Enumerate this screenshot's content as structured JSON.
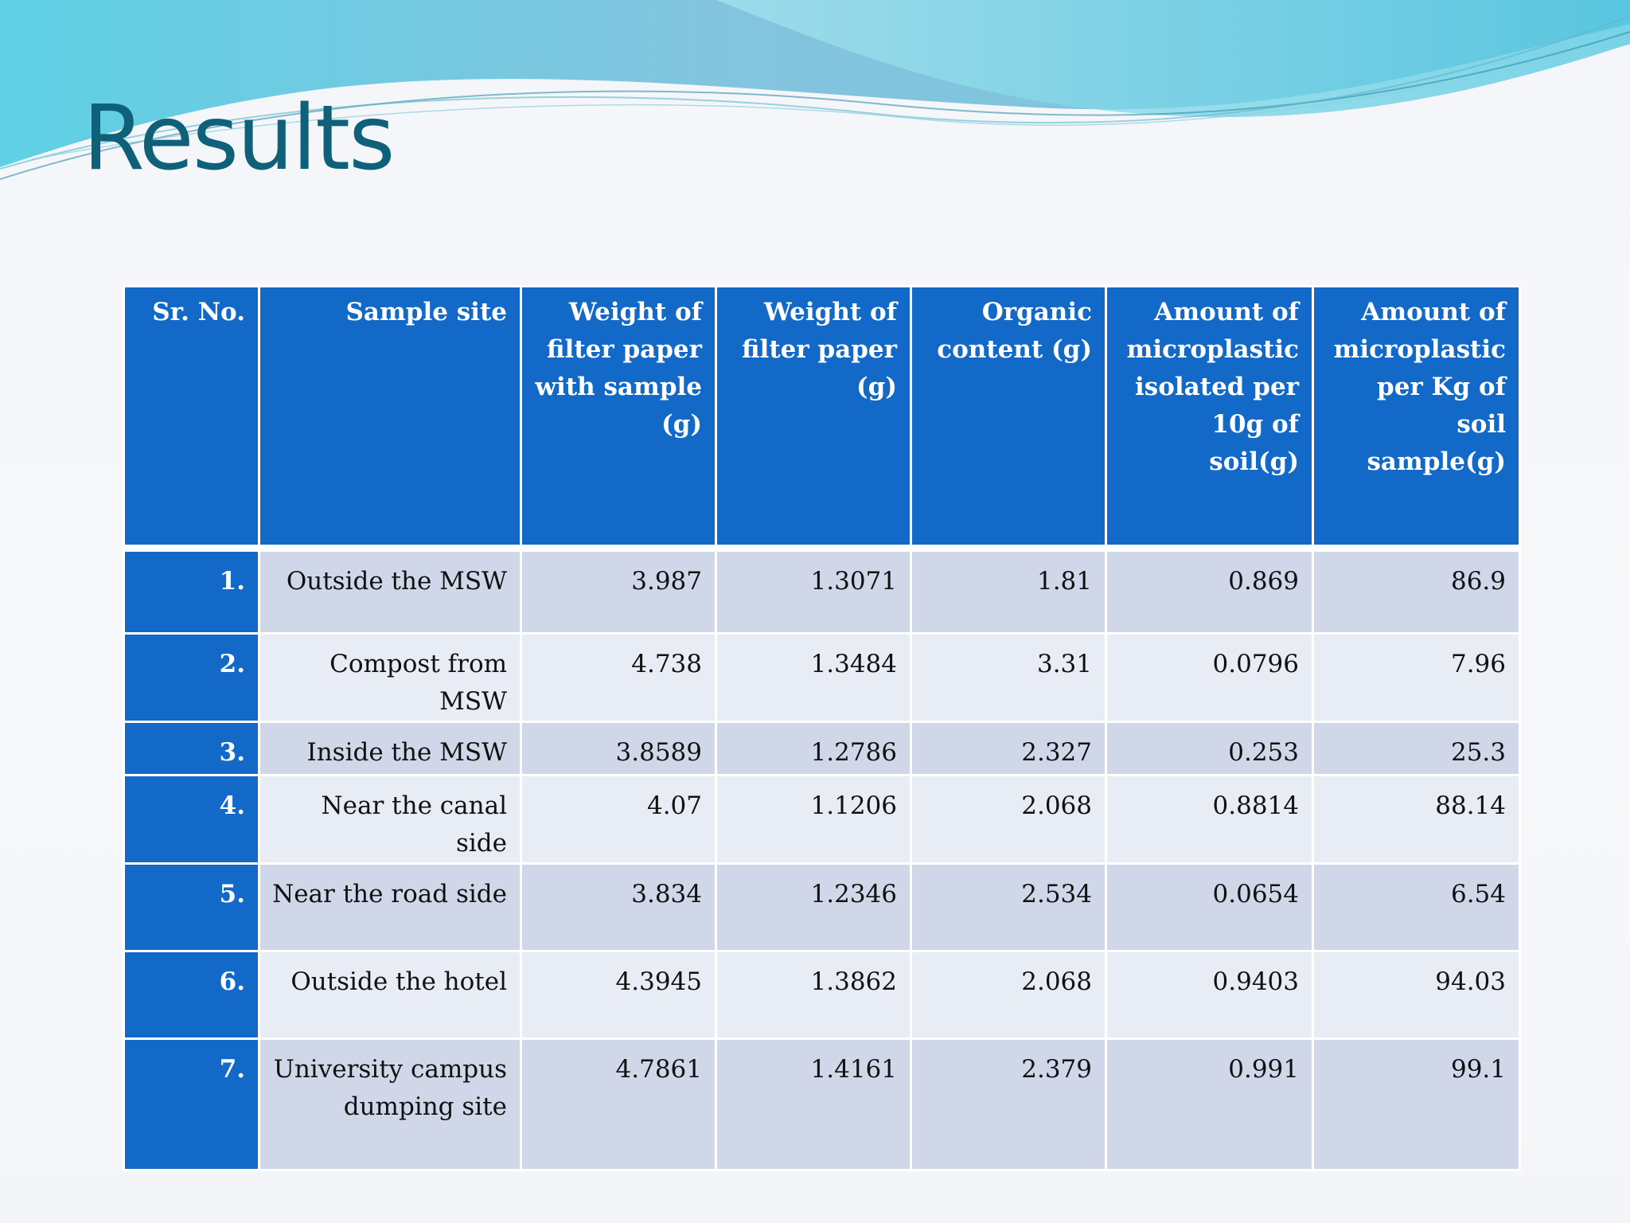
{
  "slide": {
    "title": "Results"
  },
  "colors": {
    "title": "#0f6079",
    "header_bg": "#1269c8",
    "row_odd": "#cfd7e9",
    "row_even": "#e8ecf5"
  },
  "table": {
    "headers": [
      "Sr. No.",
      "Sample site",
      "Weight of filter paper with sample (g)",
      "Weight of filter paper (g)",
      "Organic content (g)",
      "Amount of microplastic isolated per 10g of soil(g)",
      "Amount of microplastic per Kg of soil sample(g)"
    ],
    "rows": [
      [
        "1.",
        "Outside the MSW",
        "3.987",
        "1.3071",
        "1.81",
        "0.869",
        "86.9"
      ],
      [
        "2.",
        "Compost from MSW",
        "4.738",
        "1.3484",
        "3.31",
        "0.0796",
        "7.96"
      ],
      [
        "3.",
        "Inside the MSW",
        "3.8589",
        "1.2786",
        "2.327",
        "0.253",
        "25.3"
      ],
      [
        "4.",
        "Near the canal side",
        "4.07",
        "1.1206",
        "2.068",
        "0.8814",
        "88.14"
      ],
      [
        "5.",
        "Near the road side",
        "3.834",
        "1.2346",
        "2.534",
        "0.0654",
        "6.54"
      ],
      [
        "6.",
        "Outside the hotel",
        "4.3945",
        "1.3862",
        "2.068",
        "0.9403",
        "94.03"
      ],
      [
        "7.",
        "University campus dumping site",
        "4.7861",
        "1.4161",
        "2.379",
        "0.991",
        "99.1"
      ]
    ]
  }
}
